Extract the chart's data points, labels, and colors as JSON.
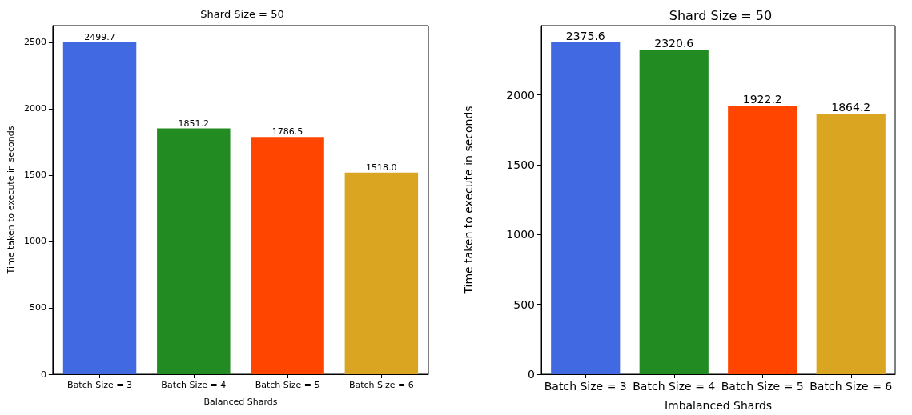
{
  "chart_data": [
    {
      "type": "bar",
      "title": "Shard Size = 50",
      "xlabel": "Balanced Shards",
      "ylabel": "Time taken to execute in seconds",
      "categories": [
        "Batch Size = 3",
        "Batch Size = 4",
        "Batch Size = 5",
        "Batch Size = 6"
      ],
      "values": [
        2499.7,
        1851.2,
        1786.5,
        1518.0
      ],
      "colors": [
        "#4169e1",
        "#228b22",
        "#ff4500",
        "#daa520"
      ],
      "value_labels": [
        "2499.7",
        "1851.2",
        "1786.5",
        "1518.0"
      ],
      "ylim": [
        0,
        2625
      ],
      "yticks": [
        0,
        500,
        1000,
        1500,
        2000,
        2500
      ],
      "grid": false
    },
    {
      "type": "bar",
      "title": "Shard Size = 50",
      "xlabel": "Imbalanced Shards",
      "ylabel": "Time taken to execute in seconds",
      "categories": [
        "Batch Size = 3",
        "Batch Size = 4",
        "Batch Size = 5",
        "Batch Size = 6"
      ],
      "values": [
        2375.6,
        2320.6,
        1922.2,
        1864.2
      ],
      "colors": [
        "#4169e1",
        "#228b22",
        "#ff4500",
        "#daa520"
      ],
      "value_labels": [
        "2375.6",
        "2320.6",
        "1922.2",
        "1864.2"
      ],
      "ylim": [
        0,
        2495
      ],
      "yticks": [
        0,
        500,
        1000,
        1500,
        2000
      ],
      "grid": false
    }
  ]
}
